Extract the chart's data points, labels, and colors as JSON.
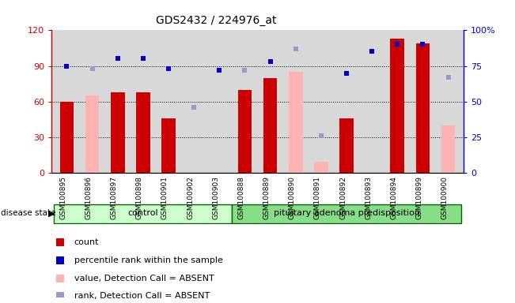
{
  "title": "GDS2432 / 224976_at",
  "samples": [
    "GSM100895",
    "GSM100896",
    "GSM100897",
    "GSM100898",
    "GSM100901",
    "GSM100902",
    "GSM100903",
    "GSM100888",
    "GSM100889",
    "GSM100890",
    "GSM100891",
    "GSM100892",
    "GSM100893",
    "GSM100894",
    "GSM100899",
    "GSM100900"
  ],
  "count_values": [
    60,
    null,
    68,
    68,
    46,
    null,
    null,
    70,
    80,
    null,
    null,
    46,
    null,
    113,
    109,
    null
  ],
  "count_absent": [
    null,
    65,
    null,
    null,
    null,
    null,
    null,
    null,
    null,
    85,
    9,
    null,
    null,
    null,
    null,
    40
  ],
  "percentile_rank": [
    75,
    null,
    80,
    80,
    73,
    null,
    72,
    null,
    78,
    null,
    null,
    70,
    85,
    90,
    90,
    null
  ],
  "percentile_rank_absent": [
    null,
    73,
    null,
    null,
    null,
    46,
    null,
    72,
    null,
    87,
    26,
    null,
    null,
    null,
    null,
    67
  ],
  "n_control": 7,
  "n_pituitary": 9,
  "ylim_left": [
    0,
    120
  ],
  "ylim_right": [
    0,
    100
  ],
  "yticks_left": [
    0,
    30,
    60,
    90,
    120
  ],
  "ytick_labels_left": [
    "0",
    "30",
    "60",
    "90",
    "120"
  ],
  "yticks_right": [
    0,
    25,
    50,
    75,
    100
  ],
  "ytick_labels_right": [
    "0",
    "25",
    "50",
    "75",
    "100%"
  ],
  "color_count": "#cc0000",
  "color_count_absent": "#ffb3b3",
  "color_rank": "#0000cc",
  "color_rank_absent": "#9999cc",
  "bg_color": "#d8d8d8",
  "control_label": "control",
  "pituitary_label": "pituitary adenoma predisposition",
  "group_bg_control": "#ccffcc",
  "group_bg_pituitary": "#88dd88",
  "legend_labels": [
    "count",
    "percentile rank within the sample",
    "value, Detection Call = ABSENT",
    "rank, Detection Call = ABSENT"
  ]
}
